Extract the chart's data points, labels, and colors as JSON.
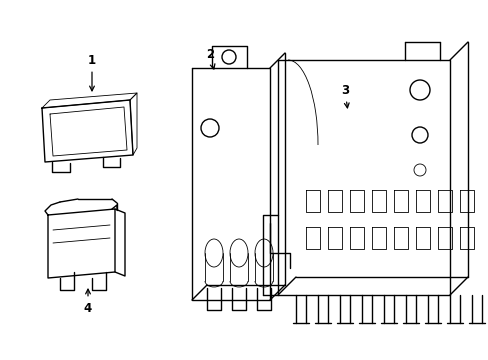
{
  "background_color": "#ffffff",
  "line_color": "#000000",
  "lw": 1.0,
  "tlw": 0.6,
  "figure_width": 4.89,
  "figure_height": 3.6,
  "dpi": 100
}
